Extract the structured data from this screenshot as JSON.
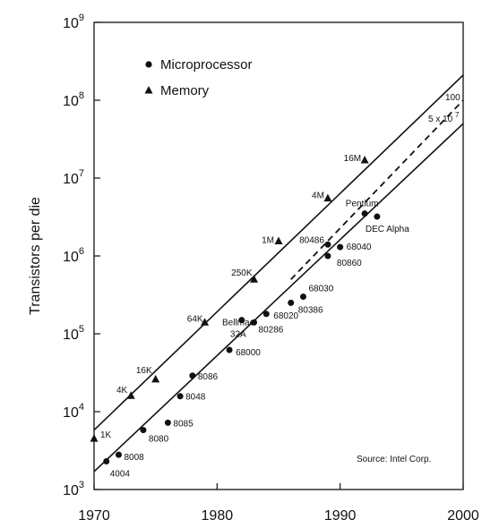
{
  "chart_data": {
    "type": "scatter",
    "title": "",
    "xlabel": "",
    "ylabel": "Transistors per die",
    "x_scale": "linear",
    "y_scale": "log",
    "xlim": [
      1970,
      2000
    ],
    "ylim": [
      1000,
      1000000000
    ],
    "x_ticks": [
      1970,
      1980,
      1990,
      2000
    ],
    "x_tick_labels": [
      "1970",
      "1980",
      "1990",
      "2000"
    ],
    "y_tick_values": [
      1000,
      10000,
      100000,
      1000000,
      10000000,
      100000000,
      1000000000
    ],
    "y_tick_labels": [
      {
        "base": "10",
        "exp": "3"
      },
      {
        "base": "10",
        "exp": "4"
      },
      {
        "base": "10",
        "exp": "5"
      },
      {
        "base": "10",
        "exp": "6"
      },
      {
        "base": "10",
        "exp": "7"
      },
      {
        "base": "10",
        "exp": "8"
      },
      {
        "base": "10",
        "exp": "9"
      }
    ],
    "grid": false,
    "legend": {
      "placement": "top-left",
      "entries": [
        {
          "marker": "circle",
          "label": "Microprocessor"
        },
        {
          "marker": "triangle",
          "label": "Memory"
        }
      ]
    },
    "series": [
      {
        "name": "Microprocessor",
        "marker": "circle",
        "points": [
          {
            "label": "4004",
            "x": 1971,
            "y": 2300
          },
          {
            "label": "8008",
            "x": 1972,
            "y": 2800
          },
          {
            "label": "8080",
            "x": 1974,
            "y": 5800
          },
          {
            "label": "8085",
            "x": 1976,
            "y": 7200
          },
          {
            "label": "8048",
            "x": 1977,
            "y": 15800
          },
          {
            "label": "8086",
            "x": 1978,
            "y": 29000
          },
          {
            "label": "68000",
            "x": 1981,
            "y": 62000
          },
          {
            "label": "Bellmac 32A",
            "x": 1982,
            "y": 150000
          },
          {
            "label": "80286",
            "x": 1983,
            "y": 140000
          },
          {
            "label": "68020",
            "x": 1984,
            "y": 180000
          },
          {
            "label": "80386",
            "x": 1986,
            "y": 250000
          },
          {
            "label": "68030",
            "x": 1987,
            "y": 300000
          },
          {
            "label": "80486",
            "x": 1989,
            "y": 1400000
          },
          {
            "label": "80860",
            "x": 1989,
            "y": 1000000
          },
          {
            "label": "68040",
            "x": 1990,
            "y": 1300000
          },
          {
            "label": "Pentium",
            "x": 1992,
            "y": 3500000
          },
          {
            "label": "DEC Alpha",
            "x": 1993,
            "y": 3200000
          }
        ]
      },
      {
        "name": "Memory",
        "marker": "triangle",
        "points": [
          {
            "label": "1K",
            "x": 1970,
            "y": 4500
          },
          {
            "label": "4K",
            "x": 1973,
            "y": 16000
          },
          {
            "label": "16K",
            "x": 1975,
            "y": 26000
          },
          {
            "label": "64K",
            "x": 1979,
            "y": 140000
          },
          {
            "label": "250K",
            "x": 1983,
            "y": 500000
          },
          {
            "label": "1M",
            "x": 1985,
            "y": 1550000
          },
          {
            "label": "4M",
            "x": 1989,
            "y": 5500000
          },
          {
            "label": "16M",
            "x": 1992,
            "y": 17000000
          }
        ]
      }
    ],
    "trend_lines": [
      {
        "style": "solid",
        "x": [
          1970,
          2000
        ],
        "y": [
          5800,
          210000000
        ]
      },
      {
        "style": "solid",
        "x": [
          1970,
          2000
        ],
        "y": [
          1700,
          50000000
        ]
      },
      {
        "style": "dashed",
        "x": [
          1986,
          2000
        ],
        "y": [
          500000,
          100000000
        ]
      }
    ],
    "annotations": {
      "dashed_end_value": "100",
      "lower_end_value": "5 x 10",
      "lower_end_value_exp": "7",
      "source": "Source: Intel Corp."
    }
  }
}
